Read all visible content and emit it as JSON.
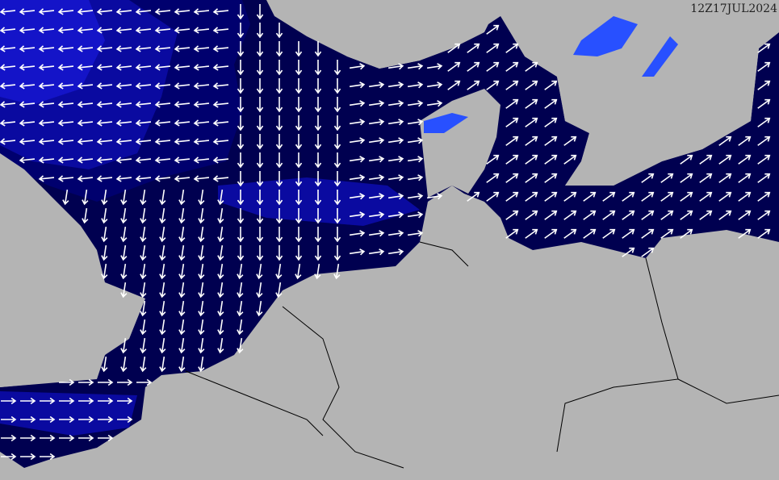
{
  "map": {
    "timestamp": "12Z17JUL2024",
    "colors": {
      "land": "#b4b4b4",
      "sea_low": "#000050",
      "sea_mid": "#00006e",
      "sea_high": "#0a0aa0",
      "sea_higher": "#1414c8",
      "lakes": "#2850ff",
      "arrows": "#ffffff",
      "borders": "#000000"
    },
    "icons": [
      "arrow-icon"
    ]
  }
}
